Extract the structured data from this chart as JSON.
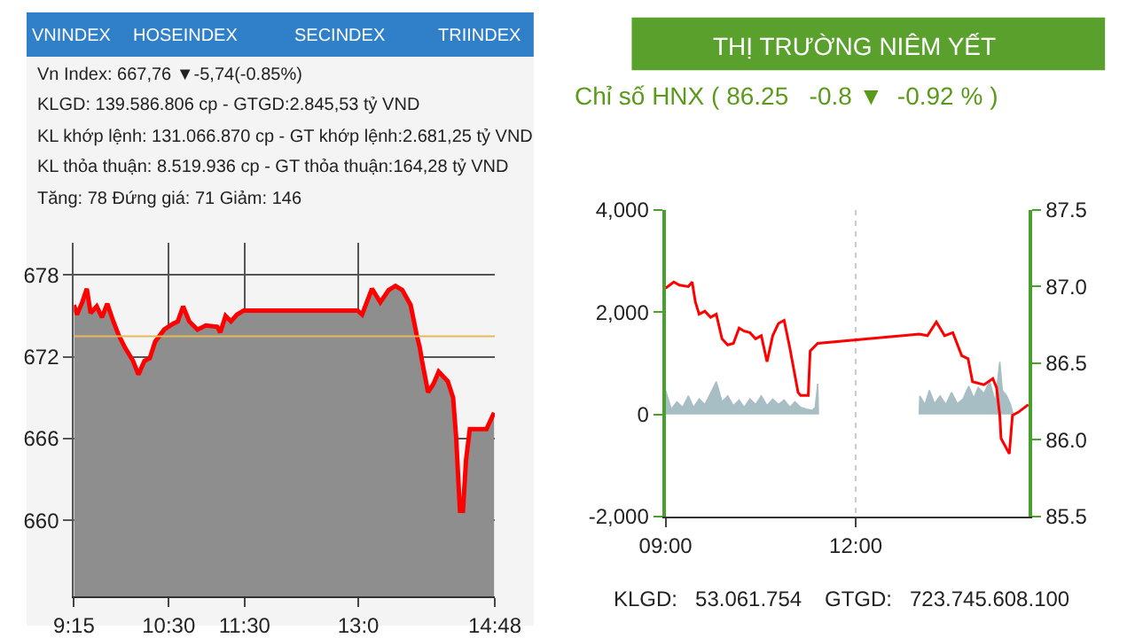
{
  "chart_data": [
    {
      "type": "area",
      "title": "Vn Index: 667,76 ▼-5,74(-0.85%)",
      "annotations": [
        "VNINDEX",
        "HOSEINDEX",
        "SECINDEX",
        "TRIINDEX",
        "KLGD: 139.586.806 cp - GTGD:2.845,53 tỷ VND",
        "KL khớp lệnh: 131.066.870 cp - GT khớp lệnh:2.681,25 tỷ VND",
        "KL thỏa thuận: 8.519.936 cp - GT thỏa thuận:164,28 tỷ VND",
        "Tăng: 78 Đứng giá: 71 Giảm: 146"
      ],
      "x": [
        9.25,
        9.29,
        9.36,
        9.42,
        9.47,
        9.55,
        9.62,
        9.69,
        9.77,
        9.84,
        9.92,
        10.03,
        10.1,
        10.18,
        10.25,
        10.32,
        10.44,
        10.55,
        10.62,
        10.69,
        10.77,
        10.88,
        10.99,
        11.14,
        11.18,
        11.25,
        11.32,
        11.4,
        11.49,
        12.99,
        13.05,
        13.18,
        13.29,
        13.4,
        13.49,
        13.58,
        13.69,
        13.77,
        13.81,
        13.84,
        13.92,
        13.99,
        14.06,
        14.18,
        14.25,
        14.29,
        14.34,
        14.38,
        14.42,
        14.47,
        14.69,
        14.79
      ],
      "series": [
        {
          "color": "#ff0000",
          "values": [
            675.8,
            675.1,
            676.0,
            677.0,
            675.2,
            675.7,
            674.9,
            675.9,
            674.6,
            673.6,
            672.7,
            671.7,
            670.7,
            671.7,
            671.9,
            673.1,
            674.0,
            674.4,
            674.6,
            675.7,
            674.6,
            674.0,
            674.3,
            674.2,
            673.8,
            675.0,
            674.6,
            675.1,
            675.4,
            675.4,
            675.1,
            677.0,
            676.0,
            676.9,
            677.2,
            676.9,
            675.8,
            673.6,
            672.7,
            671.7,
            669.4,
            670.0,
            670.9,
            670.2,
            669.0,
            666.1,
            660.7,
            660.7,
            664.4,
            666.7,
            666.7,
            667.9
          ]
        }
      ],
      "xlim": [
        9.25,
        14.8
      ],
      "xticks": [
        {
          "value": 9.25,
          "label": "9:15"
        },
        {
          "value": 10.5,
          "label": "10:30"
        },
        {
          "value": 11.5,
          "label": "11:30"
        },
        {
          "value": 13.0,
          "label": "13:0"
        },
        {
          "value": 14.8,
          "label": "14:48"
        }
      ],
      "ylim": [
        654.4,
        680.4
      ],
      "yticks": [
        660,
        666,
        672,
        678
      ],
      "grid": true,
      "ref_lines": [
        {
          "axis": "y",
          "value": 673.5,
          "color": "#e6b85c"
        }
      ]
    },
    {
      "type": "line",
      "title": "THỊ TRƯỜNG NIÊM YẾT",
      "subtitle": "Chỉ số HNX ( 86.25   -0.8 ▼  -0.92 % )",
      "annotations": [
        "KLGD:   53.061.754",
        "GTGD:   723.745.608.100"
      ],
      "x": [
        9.0,
        9.13,
        9.22,
        9.36,
        9.42,
        9.47,
        9.53,
        9.62,
        9.71,
        9.8,
        9.89,
        9.98,
        10.07,
        10.16,
        10.24,
        10.33,
        10.42,
        10.51,
        10.6,
        10.69,
        10.78,
        10.87,
        10.96,
        11.0,
        11.09,
        11.13,
        11.25,
        11.28,
        11.4,
        13.0,
        13.13,
        13.27,
        13.4,
        13.53,
        13.67,
        13.77,
        13.84,
        14.02,
        14.16,
        14.22,
        14.27,
        14.29,
        14.42,
        14.47,
        14.56,
        14.72
      ],
      "series": [
        {
          "type": "area",
          "color": "#a7bec4",
          "x": [
            9.0,
            9.09,
            9.18,
            9.27,
            9.36,
            9.44,
            9.53,
            9.62,
            9.71,
            9.8,
            9.89,
            9.98,
            10.07,
            10.16,
            10.24,
            10.33,
            10.42,
            10.51,
            10.6,
            10.69,
            10.78,
            10.87,
            10.96,
            11.04,
            11.13,
            11.22,
            11.31,
            11.36,
            11.4,
            11.41,
            12.0,
            13.0,
            13.01,
            13.09,
            13.16,
            13.24,
            13.33,
            13.42,
            13.51,
            13.6,
            13.69,
            13.78,
            13.86,
            13.93,
            14.02,
            14.11,
            14.2,
            14.27,
            14.31,
            14.38,
            14.44,
            14.48
          ],
          "values": [
            470,
            100,
            245,
            135,
            360,
            135,
            300,
            190,
            410,
            640,
            245,
            360,
            170,
            280,
            135,
            300,
            190,
            360,
            170,
            300,
            190,
            280,
            135,
            245,
            135,
            100,
            80,
            135,
            600,
            0,
            null,
            0,
            360,
            190,
            470,
            210,
            360,
            190,
            430,
            210,
            300,
            550,
            320,
            525,
            410,
            640,
            245,
            1030,
            470,
            360,
            190,
            0
          ]
        },
        {
          "type": "line",
          "axis": "y2",
          "color": "#ff0000",
          "values": [
            86.99,
            87.03,
            87.01,
            87.0,
            87.03,
            86.9,
            86.82,
            86.84,
            86.8,
            86.82,
            86.66,
            86.62,
            86.63,
            86.73,
            86.71,
            86.7,
            86.66,
            86.68,
            86.51,
            86.68,
            86.76,
            86.78,
            86.6,
            86.51,
            86.31,
            86.29,
            86.29,
            86.58,
            86.63,
            86.69,
            86.68,
            86.77,
            86.68,
            86.7,
            86.55,
            86.53,
            86.38,
            86.36,
            86.4,
            86.34,
            86.16,
            86.01,
            85.91,
            86.16,
            86.18,
            86.23
          ]
        }
      ],
      "xlim": [
        9.0,
        14.73
      ],
      "xticks": [
        {
          "value": 9,
          "label": "09:00"
        },
        {
          "value": 12,
          "label": "12:00"
        }
      ],
      "ylim": [
        -2000,
        4000
      ],
      "yticks": [
        {
          "value": -2000,
          "label": "-2,000"
        },
        0,
        {
          "value": 2000,
          "label": "2,000"
        },
        {
          "value": 4000,
          "label": "4,000"
        }
      ],
      "y2lim": [
        85.5,
        87.5
      ],
      "y2ticks": [
        85.5,
        {
          "value": 86.0,
          "label": "86.0"
        },
        86.5,
        {
          "value": 87.0,
          "label": "87.0"
        },
        87.5
      ],
      "grid": "x"
    }
  ]
}
